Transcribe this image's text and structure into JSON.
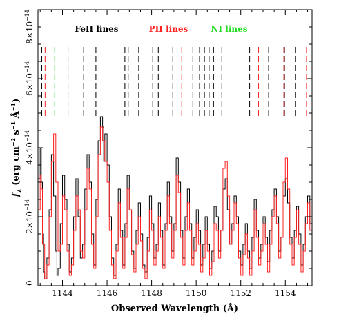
{
  "chart_data": {
    "type": "line",
    "xlabel": "Observed Wavelength (Å)",
    "ylabel_main": "f",
    "ylabel_sub": "λ",
    "ylabel_rest": " (erg cm",
    "ylabel_exp1": "−2",
    "ylabel_mid": " s",
    "ylabel_exp2": "−1",
    "ylabel_mid2": " Å",
    "ylabel_exp3": "−1",
    "ylabel_end": ")",
    "xlim": [
      1142.9,
      1155.2
    ],
    "ylim": [
      0,
      8e-14
    ],
    "x_ticks": [
      {
        "value": 1144,
        "label": "1144"
      },
      {
        "value": 1146,
        "label": "1146"
      },
      {
        "value": 1148,
        "label": "1148"
      },
      {
        "value": 1150,
        "label": "1150"
      },
      {
        "value": 1152,
        "label": "1152"
      },
      {
        "value": 1154,
        "label": "1154"
      }
    ],
    "y_ticks": [
      {
        "value": 0,
        "label": "0",
        "mant": "",
        "exp": ""
      },
      {
        "value": 2e-14,
        "label": "",
        "mant": "2×10",
        "exp": "−14"
      },
      {
        "value": 4e-14,
        "label": "",
        "mant": "4×10",
        "exp": "−14"
      },
      {
        "value": 6e-14,
        "label": "",
        "mant": "6×10",
        "exp": "−14"
      },
      {
        "value": 8e-14,
        "label": "",
        "mant": "8×10",
        "exp": "−14"
      }
    ],
    "legend": [
      {
        "label": "FeII lines",
        "color": "#000000"
      },
      {
        "label": "PII lines",
        "color": "#ff2020"
      },
      {
        "label": "NI lines",
        "color": "#22dd22"
      }
    ],
    "line_markers": [
      {
        "x": 1143.07,
        "color": "#000000"
      },
      {
        "x": 1143.22,
        "color": "#ff2020"
      },
      {
        "x": 1143.65,
        "color": "#22dd22"
      },
      {
        "x": 1144.25,
        "color": "#000000"
      },
      {
        "x": 1144.95,
        "color": "#000000"
      },
      {
        "x": 1145.5,
        "color": "#000000"
      },
      {
        "x": 1146.8,
        "color": "#000000"
      },
      {
        "x": 1146.95,
        "color": "#000000"
      },
      {
        "x": 1147.42,
        "color": "#000000"
      },
      {
        "x": 1148.05,
        "color": "#000000"
      },
      {
        "x": 1148.3,
        "color": "#000000"
      },
      {
        "x": 1148.95,
        "color": "#000000"
      },
      {
        "x": 1149.35,
        "color": "#ff2020"
      },
      {
        "x": 1149.85,
        "color": "#000000"
      },
      {
        "x": 1150.15,
        "color": "#000000"
      },
      {
        "x": 1150.37,
        "color": "#000000"
      },
      {
        "x": 1150.58,
        "color": "#000000"
      },
      {
        "x": 1150.78,
        "color": "#000000"
      },
      {
        "x": 1151.15,
        "color": "#000000"
      },
      {
        "x": 1152.4,
        "color": "#000000"
      },
      {
        "x": 1152.8,
        "color": "#ff2020"
      },
      {
        "x": 1153.25,
        "color": "#000000"
      },
      {
        "x": 1153.95,
        "color": "#7a0000"
      },
      {
        "x": 1154.45,
        "color": "#000000"
      },
      {
        "x": 1154.95,
        "color": "#ff2020"
      }
    ],
    "series": [
      {
        "color": "#000000",
        "x": [
          1142.9,
          1143.0,
          1143.05,
          1143.1,
          1143.15,
          1143.2,
          1143.3,
          1143.4,
          1143.5,
          1143.6,
          1143.7,
          1143.75,
          1143.8,
          1143.9,
          1144.0,
          1144.1,
          1144.2,
          1144.3,
          1144.4,
          1144.5,
          1144.6,
          1144.7,
          1144.8,
          1144.9,
          1145.0,
          1145.1,
          1145.2,
          1145.3,
          1145.4,
          1145.5,
          1145.6,
          1145.7,
          1145.8,
          1145.85,
          1145.9,
          1146.0,
          1146.1,
          1146.2,
          1146.3,
          1146.4,
          1146.5,
          1146.6,
          1146.7,
          1146.8,
          1146.9,
          1147.0,
          1147.1,
          1147.2,
          1147.3,
          1147.4,
          1147.5,
          1147.6,
          1147.7,
          1147.8,
          1147.9,
          1148.0,
          1148.1,
          1148.2,
          1148.3,
          1148.4,
          1148.5,
          1148.6,
          1148.7,
          1148.8,
          1148.9,
          1149.0,
          1149.1,
          1149.2,
          1149.3,
          1149.4,
          1149.5,
          1149.6,
          1149.7,
          1149.8,
          1149.9,
          1150.0,
          1150.1,
          1150.2,
          1150.3,
          1150.4,
          1150.5,
          1150.6,
          1150.7,
          1150.8,
          1150.9,
          1151.0,
          1151.1,
          1151.2,
          1151.3,
          1151.4,
          1151.5,
          1151.6,
          1151.7,
          1151.8,
          1151.9,
          1152.0,
          1152.1,
          1152.2,
          1152.3,
          1152.4,
          1152.5,
          1152.6,
          1152.7,
          1152.8,
          1152.9,
          1153.0,
          1153.1,
          1153.2,
          1153.3,
          1153.4,
          1153.5,
          1153.6,
          1153.7,
          1153.8,
          1153.9,
          1154.0,
          1154.1,
          1154.2,
          1154.3,
          1154.4,
          1154.5,
          1154.6,
          1154.7,
          1154.8,
          1154.9,
          1155.0,
          1155.1,
          1155.2
        ],
        "y": [
          3.1e-14,
          4e-14,
          3e-14,
          1.5e-14,
          4e-15,
          2e-15,
          8e-15,
          2.2e-14,
          3.8e-14,
          2.6e-14,
          1e-14,
          3e-15,
          5e-15,
          1.8e-14,
          3.2e-14,
          2.5e-14,
          1.2e-14,
          4e-15,
          8e-15,
          2e-14,
          3.1e-14,
          2e-14,
          8e-15,
          1.2e-14,
          2.8e-14,
          3.8e-14,
          3e-14,
          1.5e-14,
          6e-15,
          2.5e-14,
          4.2e-14,
          4.9e-14,
          4.6e-14,
          3.6e-14,
          4.4e-14,
          3.5e-14,
          2e-14,
          8e-15,
          3e-15,
          1.2e-14,
          2.8e-14,
          1.6e-14,
          6e-15,
          1.8e-14,
          3.2e-14,
          2.2e-14,
          1e-14,
          5e-15,
          1.6e-14,
          2.4e-14,
          1.5e-14,
          6e-15,
          4e-15,
          1.4e-14,
          2.6e-14,
          1.8e-14,
          8e-15,
          1.2e-14,
          2.4e-14,
          1.6e-14,
          6e-15,
          1.8e-14,
          3e-14,
          2e-14,
          1e-14,
          1.8e-14,
          3.7e-14,
          3e-14,
          1.6e-14,
          8e-15,
          2e-14,
          2.8e-14,
          1.8e-14,
          8e-15,
          1.4e-14,
          2.2e-14,
          1.6e-14,
          6e-15,
          1.2e-14,
          2e-14,
          1.2e-14,
          5e-15,
          1e-14,
          2.3e-14,
          2e-14,
          1e-14,
          1.6e-14,
          2.8e-14,
          3.1e-14,
          2.2e-14,
          1.2e-14,
          1.8e-14,
          2.6e-14,
          2e-14,
          1e-14,
          6e-15,
          1.2e-14,
          1.8e-14,
          1e-14,
          5e-15,
          1.4e-14,
          2.5e-14,
          1.6e-14,
          8e-15,
          1.2e-14,
          2e-14,
          1.4e-14,
          7e-15,
          1.6e-14,
          2.2e-14,
          2.8e-14,
          2e-14,
          1e-14,
          1.4e-14,
          2.6e-14,
          3.1e-14,
          2.4e-14,
          1.4e-14,
          8e-15,
          1.6e-14,
          2.3e-14,
          1.5e-14,
          6e-15,
          1.2e-14,
          2e-14,
          2.6e-14,
          1.8e-14,
          2.2e-14
        ]
      },
      {
        "color": "#ff2020",
        "x": [
          1142.9,
          1143.0,
          1143.05,
          1143.1,
          1143.2,
          1143.3,
          1143.4,
          1143.5,
          1143.6,
          1143.7,
          1143.8,
          1143.9,
          1144.0,
          1144.1,
          1144.2,
          1144.3,
          1144.4,
          1144.5,
          1144.6,
          1144.7,
          1144.8,
          1144.9,
          1145.0,
          1145.1,
          1145.2,
          1145.3,
          1145.4,
          1145.5,
          1145.6,
          1145.7,
          1145.8,
          1145.9,
          1146.0,
          1146.1,
          1146.2,
          1146.3,
          1146.4,
          1146.5,
          1146.6,
          1146.7,
          1146.8,
          1146.9,
          1147.0,
          1147.1,
          1147.2,
          1147.3,
          1147.4,
          1147.5,
          1147.6,
          1147.7,
          1147.8,
          1147.9,
          1148.0,
          1148.1,
          1148.2,
          1148.3,
          1148.4,
          1148.5,
          1148.6,
          1148.7,
          1148.8,
          1148.9,
          1149.0,
          1149.1,
          1149.2,
          1149.3,
          1149.4,
          1149.5,
          1149.6,
          1149.7,
          1149.8,
          1149.9,
          1150.0,
          1150.1,
          1150.2,
          1150.3,
          1150.4,
          1150.5,
          1150.6,
          1150.7,
          1150.8,
          1150.9,
          1151.0,
          1151.1,
          1151.2,
          1151.3,
          1151.4,
          1151.5,
          1151.6,
          1151.7,
          1151.8,
          1151.9,
          1152.0,
          1152.1,
          1152.2,
          1152.3,
          1152.4,
          1152.5,
          1152.6,
          1152.7,
          1152.8,
          1152.9,
          1153.0,
          1153.1,
          1153.2,
          1153.3,
          1153.4,
          1153.5,
          1153.6,
          1153.7,
          1153.8,
          1153.9,
          1154.0,
          1154.1,
          1154.2,
          1154.3,
          1154.4,
          1154.5,
          1154.6,
          1154.7,
          1154.8,
          1154.9,
          1155.0,
          1155.1,
          1155.2
        ],
        "y": [
          2.2e-14,
          3.2e-14,
          2.8e-14,
          1.2e-14,
          2e-15,
          6e-15,
          2e-14,
          3.6e-14,
          4.4e-14,
          3e-14,
          1e-14,
          1.2e-14,
          2.6e-14,
          2.2e-14,
          1e-14,
          3e-15,
          6e-15,
          1.6e-14,
          2.6e-14,
          2.2e-14,
          1e-14,
          8e-15,
          2.2e-14,
          3.4e-14,
          2.8e-14,
          1.2e-14,
          5e-15,
          2e-14,
          3.8e-14,
          4.6e-14,
          4.2e-14,
          3.6e-14,
          3e-14,
          1.6e-14,
          6e-15,
          2e-15,
          1e-14,
          2.4e-14,
          1.4e-14,
          5e-15,
          1.4e-14,
          2.8e-14,
          2.2e-14,
          9e-15,
          4e-15,
          1.2e-14,
          2e-14,
          1.3e-14,
          5e-15,
          2e-15,
          1e-14,
          2.2e-14,
          1.6e-14,
          6e-15,
          1e-14,
          2e-14,
          1.4e-14,
          5e-15,
          1.6e-14,
          2.6e-14,
          1.8e-14,
          8e-15,
          1.6e-14,
          3.2e-14,
          2.7e-14,
          1.4e-14,
          6e-15,
          1.6e-14,
          2.4e-14,
          1.6e-14,
          6e-15,
          1e-14,
          1.8e-14,
          1.2e-14,
          4e-15,
          8e-15,
          1.6e-14,
          1e-14,
          3e-15,
          7e-15,
          1.8e-14,
          1.6e-14,
          8e-15,
          1.6e-14,
          3.4e-14,
          3.6e-14,
          2.6e-14,
          1.2e-14,
          1.6e-14,
          2.4e-14,
          1.8e-14,
          8e-15,
          3e-15,
          9e-15,
          1.5e-14,
          8e-15,
          3e-15,
          1e-14,
          2.2e-14,
          1.4e-14,
          6e-15,
          1e-14,
          1.8e-14,
          1.2e-14,
          4e-15,
          1.2e-14,
          2e-14,
          2.6e-14,
          1.8e-14,
          8e-15,
          1.4e-14,
          3e-14,
          3.7e-14,
          2.8e-14,
          1.2e-14,
          6e-15,
          1.4e-14,
          2.2e-14,
          1.2e-14,
          4e-15,
          1e-14,
          1.8e-14,
          2.4e-14,
          1.6e-14,
          2e-14
        ]
      }
    ]
  }
}
